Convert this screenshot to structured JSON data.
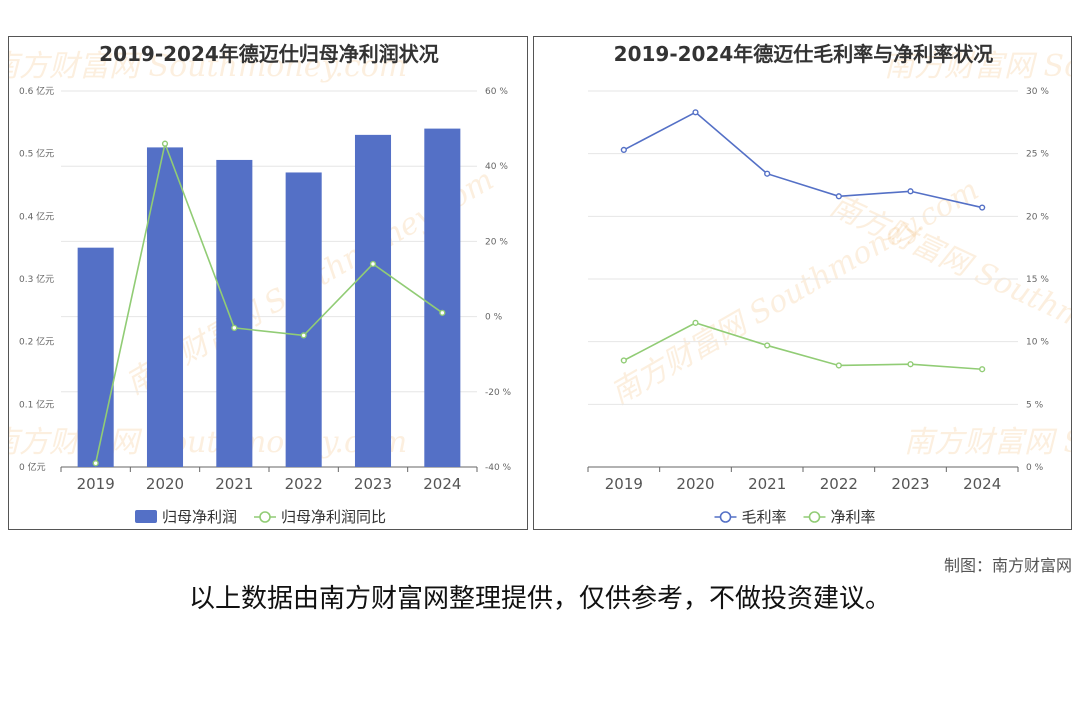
{
  "chart_data": [
    {
      "type": "bar",
      "title": "2019-2024年德迈仕归母净利润状况",
      "categories": [
        "2019",
        "2020",
        "2021",
        "2022",
        "2023",
        "2024"
      ],
      "series": [
        {
          "name": "归母净利润",
          "type": "bar",
          "axis": "left",
          "color": "#5470c6",
          "values": [
            0.35,
            0.51,
            0.49,
            0.47,
            0.53,
            0.54
          ]
        },
        {
          "name": "归母净利润同比",
          "type": "line",
          "axis": "right",
          "color": "#91cc75",
          "values": [
            -39,
            46,
            -3,
            -5,
            14,
            1
          ]
        }
      ],
      "y_left": {
        "min": 0,
        "max": 0.6,
        "ticks": [
          0,
          0.1,
          0.2,
          0.3,
          0.4,
          0.5,
          0.6
        ],
        "tick_labels": [
          "0 亿元",
          "0.1 亿元",
          "0.2 亿元",
          "0.3 亿元",
          "0.4 亿元",
          "0.5 亿元",
          "0.6 亿元"
        ]
      },
      "y_right": {
        "min": -40,
        "max": 60,
        "ticks": [
          -40,
          -20,
          0,
          20,
          40,
          60
        ],
        "tick_labels": [
          "-40 %",
          "-20 %",
          "0 %",
          "20 %",
          "40 %",
          "60 %"
        ]
      },
      "legend": "bottom-center",
      "grid": true
    },
    {
      "type": "line",
      "title": "2019-2024年德迈仕毛利率与净利率状况",
      "categories": [
        "2019",
        "2020",
        "2021",
        "2022",
        "2023",
        "2024"
      ],
      "series": [
        {
          "name": "毛利率",
          "color": "#5470c6",
          "values": [
            25.3,
            28.3,
            23.4,
            21.6,
            22.0,
            20.7
          ]
        },
        {
          "name": "净利率",
          "color": "#91cc75",
          "values": [
            8.5,
            11.5,
            9.7,
            8.1,
            8.2,
            7.8
          ]
        }
      ],
      "y_right": {
        "min": 0,
        "max": 30,
        "ticks": [
          0,
          5,
          10,
          15,
          20,
          25,
          30
        ],
        "tick_labels": [
          "0 %",
          "5 %",
          "10 %",
          "15 %",
          "20 %",
          "25 %",
          "30 %"
        ]
      },
      "legend": "bottom-center",
      "grid": true
    }
  ],
  "watermark": {
    "cn": "南方财富网",
    "en": "Southmoney.com"
  },
  "footer": {
    "credit": "制图：南方财富网",
    "disclaimer": "以上数据由南方财富网整理提供，仅供参考，不做投资建议。"
  }
}
